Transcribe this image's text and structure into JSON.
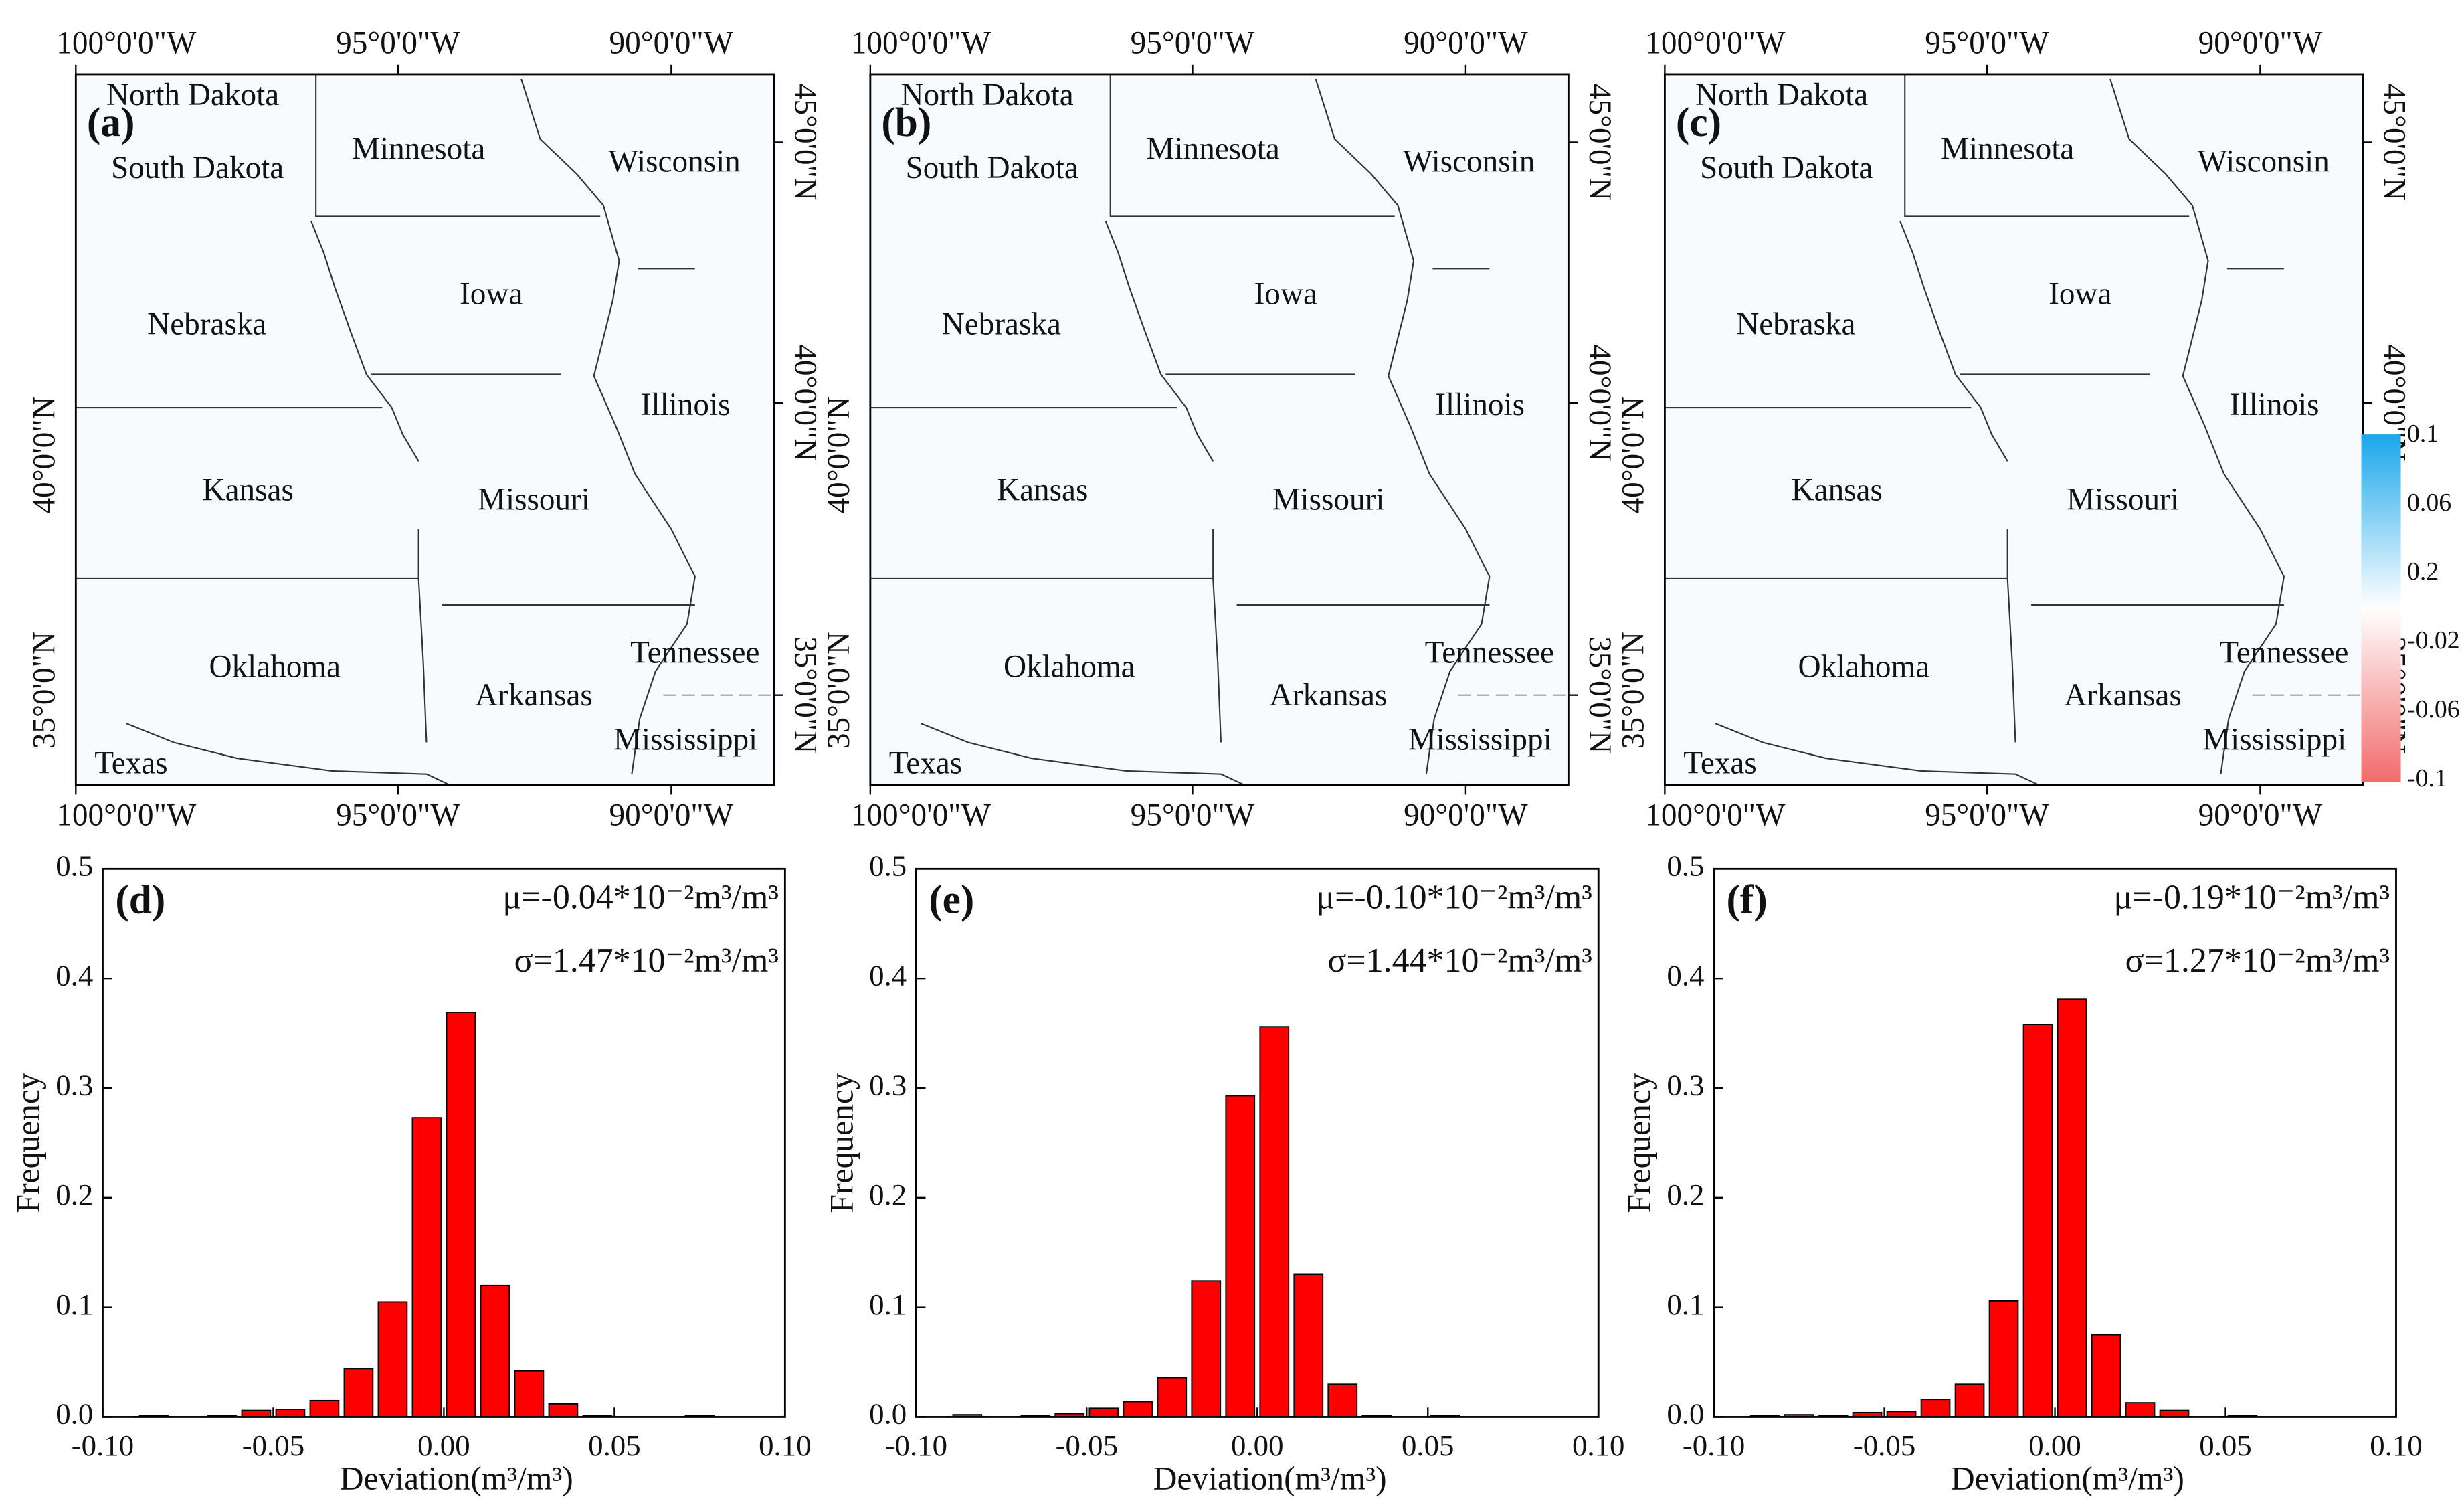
{
  "maps": [
    {
      "panel": "(a)"
    },
    {
      "panel": "(b)"
    },
    {
      "panel": "(c)"
    }
  ],
  "states": [
    "North Dakota",
    "South Dakota",
    "Minnesota",
    "Wisconsin",
    "Iowa",
    "Nebraska",
    "Illinois",
    "Kansas",
    "Missouri",
    "Oklahoma",
    "Tennessee",
    "Arkansas",
    "Mississippi",
    "Texas"
  ],
  "lon_labels": [
    "100°0'0\"W",
    "95°0'0\"W",
    "90°0'0\"W"
  ],
  "lat_labels_left": [
    "40°0'0\"N",
    "35°0'0\"N"
  ],
  "lat_labels_right": [
    "45°0'0\"N",
    "40°0'0\"N",
    "35°0'0\"N"
  ],
  "colorbar_labels": [
    "0.1",
    "0.06",
    "0.2",
    "-0.02",
    "-0.06",
    "-0.1"
  ],
  "chart_data": [
    {
      "type": "histogram",
      "title": "(d)",
      "annotations": [
        "μ=-0.04*10⁻²m³/m³",
        "σ=1.47*10⁻²m³/m³"
      ],
      "x_label": "Deviation(m³/m³)",
      "y_label": "Frequency",
      "color": "#ff0000",
      "bins": [
        -0.1,
        -0.09,
        -0.08,
        -0.07,
        -0.06,
        -0.05,
        -0.04,
        -0.03,
        -0.02,
        -0.01,
        0,
        0.01,
        0.02,
        0.03,
        0.04,
        0.05,
        0.06,
        0.07,
        0.08,
        0.09,
        0.1
      ],
      "values": [
        0,
        0.001,
        0,
        0.001,
        0.006,
        0.007,
        0.015,
        0.044,
        0.105,
        0.273,
        0.369,
        0.12,
        0.042,
        0.012,
        0.001,
        0,
        0,
        0.001,
        0,
        0
      ],
      "xlim": [
        -0.1,
        0.1
      ],
      "xticks": [
        {
          "value": -0.1,
          "label": "-0.10"
        },
        -0.05,
        {
          "value": 0,
          "label": "0.00"
        },
        0.05,
        {
          "value": 0.1,
          "label": "0.10"
        }
      ],
      "ylim": [
        0,
        0.5
      ],
      "yticks": [
        {
          "value": 0,
          "label": "0.0"
        },
        0.1,
        0.2,
        0.3,
        0.4,
        0.5
      ]
    },
    {
      "type": "histogram",
      "title": "(e)",
      "annotations": [
        "μ=-0.10*10⁻²m³/m³",
        "σ=1.44*10⁻²m³/m³"
      ],
      "x_label": "Deviation(m³/m³)",
      "y_label": "Frequency",
      "color": "#ff0000",
      "bins": [
        -0.1,
        -0.09,
        -0.08,
        -0.07,
        -0.06,
        -0.05,
        -0.04,
        -0.03,
        -0.02,
        -0.01,
        0,
        0.01,
        0.02,
        0.03,
        0.04,
        0.05,
        0.06,
        0.07,
        0.08,
        0.09,
        0.1
      ],
      "values": [
        0,
        0.002,
        0,
        0.001,
        0.003,
        0.008,
        0.014,
        0.036,
        0.124,
        0.293,
        0.356,
        0.13,
        0.03,
        0.001,
        0,
        0.001,
        0,
        0,
        0,
        0
      ],
      "xlim": [
        -0.1,
        0.1
      ],
      "xticks": [
        {
          "value": -0.1,
          "label": "-0.10"
        },
        -0.05,
        {
          "value": 0,
          "label": "0.00"
        },
        0.05,
        {
          "value": 0.1,
          "label": "0.10"
        }
      ],
      "ylim": [
        0,
        0.5
      ],
      "yticks": [
        {
          "value": 0,
          "label": "0.0"
        },
        0.1,
        0.2,
        0.3,
        0.4,
        0.5
      ]
    },
    {
      "type": "histogram",
      "title": "(f)",
      "annotations": [
        "μ=-0.19*10⁻²m³/m³",
        "σ=1.27*10⁻²m³/m³"
      ],
      "x_label": "Deviation(m³/m³)",
      "y_label": "Frequency",
      "color": "#ff0000",
      "bins": [
        -0.1,
        -0.09,
        -0.08,
        -0.07,
        -0.06,
        -0.05,
        -0.04,
        -0.03,
        -0.02,
        -0.01,
        0,
        0.01,
        0.02,
        0.03,
        0.04,
        0.05,
        0.06,
        0.07,
        0.08,
        0.09,
        0.1
      ],
      "values": [
        0,
        0.001,
        0.002,
        0.001,
        0.004,
        0.005,
        0.016,
        0.03,
        0.106,
        0.358,
        0.381,
        0.075,
        0.013,
        0.006,
        0,
        0.001,
        0,
        0,
        0,
        0
      ],
      "xlim": [
        -0.1,
        0.1
      ],
      "xticks": [
        {
          "value": -0.1,
          "label": "-0.10"
        },
        -0.05,
        {
          "value": 0,
          "label": "0.00"
        },
        0.05,
        {
          "value": 0.1,
          "label": "0.10"
        }
      ],
      "ylim": [
        0,
        0.5
      ],
      "yticks": [
        {
          "value": 0,
          "label": "0.0"
        },
        0.1,
        0.2,
        0.3,
        0.4,
        0.5
      ]
    }
  ]
}
